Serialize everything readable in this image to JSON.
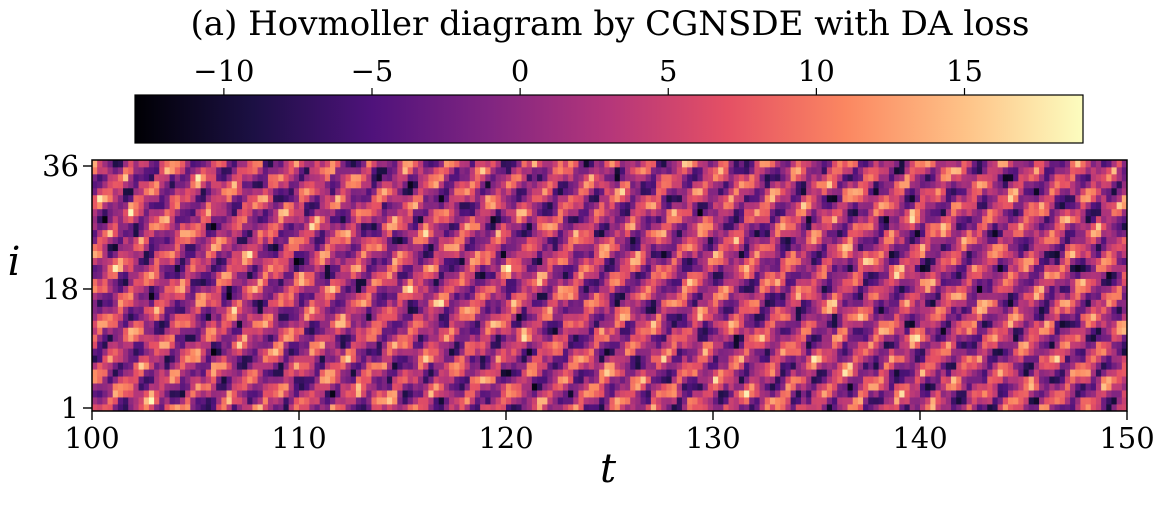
{
  "chart_data": {
    "type": "heatmap",
    "title": "(a) Hovmoller diagram by CGNSDE with DA loss",
    "xlabel": "t",
    "ylabel": "i",
    "xlim": [
      100,
      150
    ],
    "ylim": [
      1,
      36
    ],
    "x_ticks": [
      100,
      110,
      120,
      130,
      140,
      150
    ],
    "x_tick_labels": [
      "100",
      "110",
      "120",
      "130",
      "140",
      "150"
    ],
    "y_ticks": [
      1,
      18,
      36
    ],
    "y_tick_labels": [
      "1",
      "18",
      "36"
    ],
    "colorbar": {
      "colormap": "magma",
      "range": [
        -13,
        19
      ],
      "ticks": [
        -10,
        -5,
        0,
        5,
        10,
        15
      ],
      "tick_labels": [
        "−10",
        "−5",
        "0",
        "5",
        "10",
        "15"
      ],
      "placement": "top"
    },
    "grid": false,
    "data_description": "Lorenz-96 style traveling waves; 36 grid points i over time t 100-150; values approx -13 to 19",
    "colors": {
      "magma_stops": [
        "#000004",
        "#1c1044",
        "#4f127b",
        "#812581",
        "#b5367a",
        "#e55064",
        "#fb8761",
        "#fec287",
        "#fcfdbf"
      ]
    }
  }
}
